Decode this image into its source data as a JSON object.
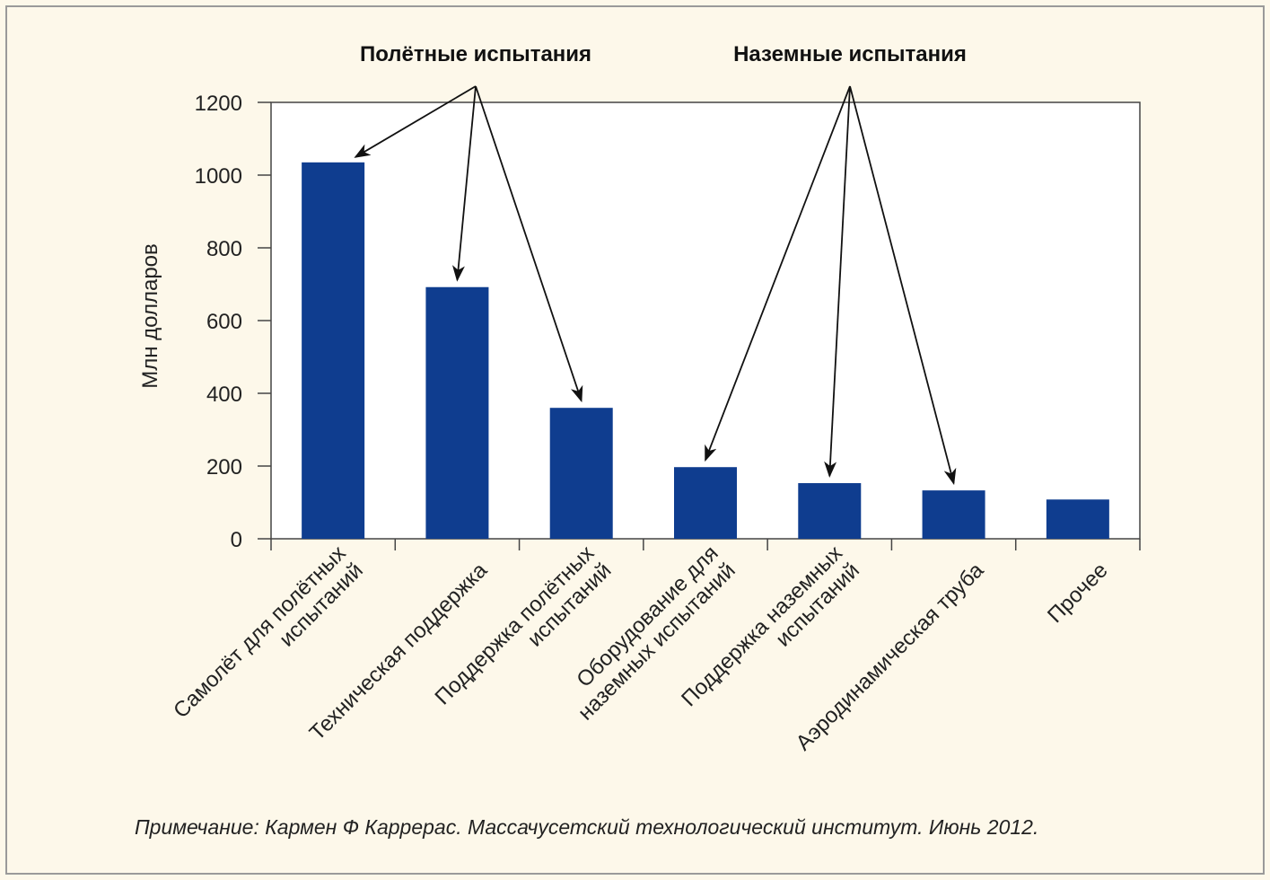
{
  "chart_data": {
    "type": "bar",
    "categories": [
      [
        "Самолёт для полётных",
        "испытаний"
      ],
      [
        "Техническая поддержка"
      ],
      [
        "Поддержка полётных",
        "испытаний"
      ],
      [
        "Оборудование для",
        "наземных испытаний"
      ],
      [
        "Поддержка наземных",
        "испытаний"
      ],
      [
        "Аэродинамическая труба"
      ],
      [
        "Прочее"
      ]
    ],
    "values": [
      1035,
      692,
      360,
      197,
      153,
      133,
      108
    ],
    "ylabel": "Млн долларов",
    "ylim": [
      0,
      1200
    ],
    "yticks": [
      0,
      200,
      400,
      600,
      800,
      1000,
      1200
    ],
    "bar_color": "#0f3d8f",
    "grid": false,
    "annotations": [
      {
        "label": "Полётные испытания",
        "targets": [
          0,
          1,
          2
        ]
      },
      {
        "label": "Наземные испытания",
        "targets": [
          3,
          4,
          5
        ]
      }
    ]
  },
  "note": "Примечание: Кармен Ф Каррерас. Массачусетский технологический институт. Июнь 2012."
}
